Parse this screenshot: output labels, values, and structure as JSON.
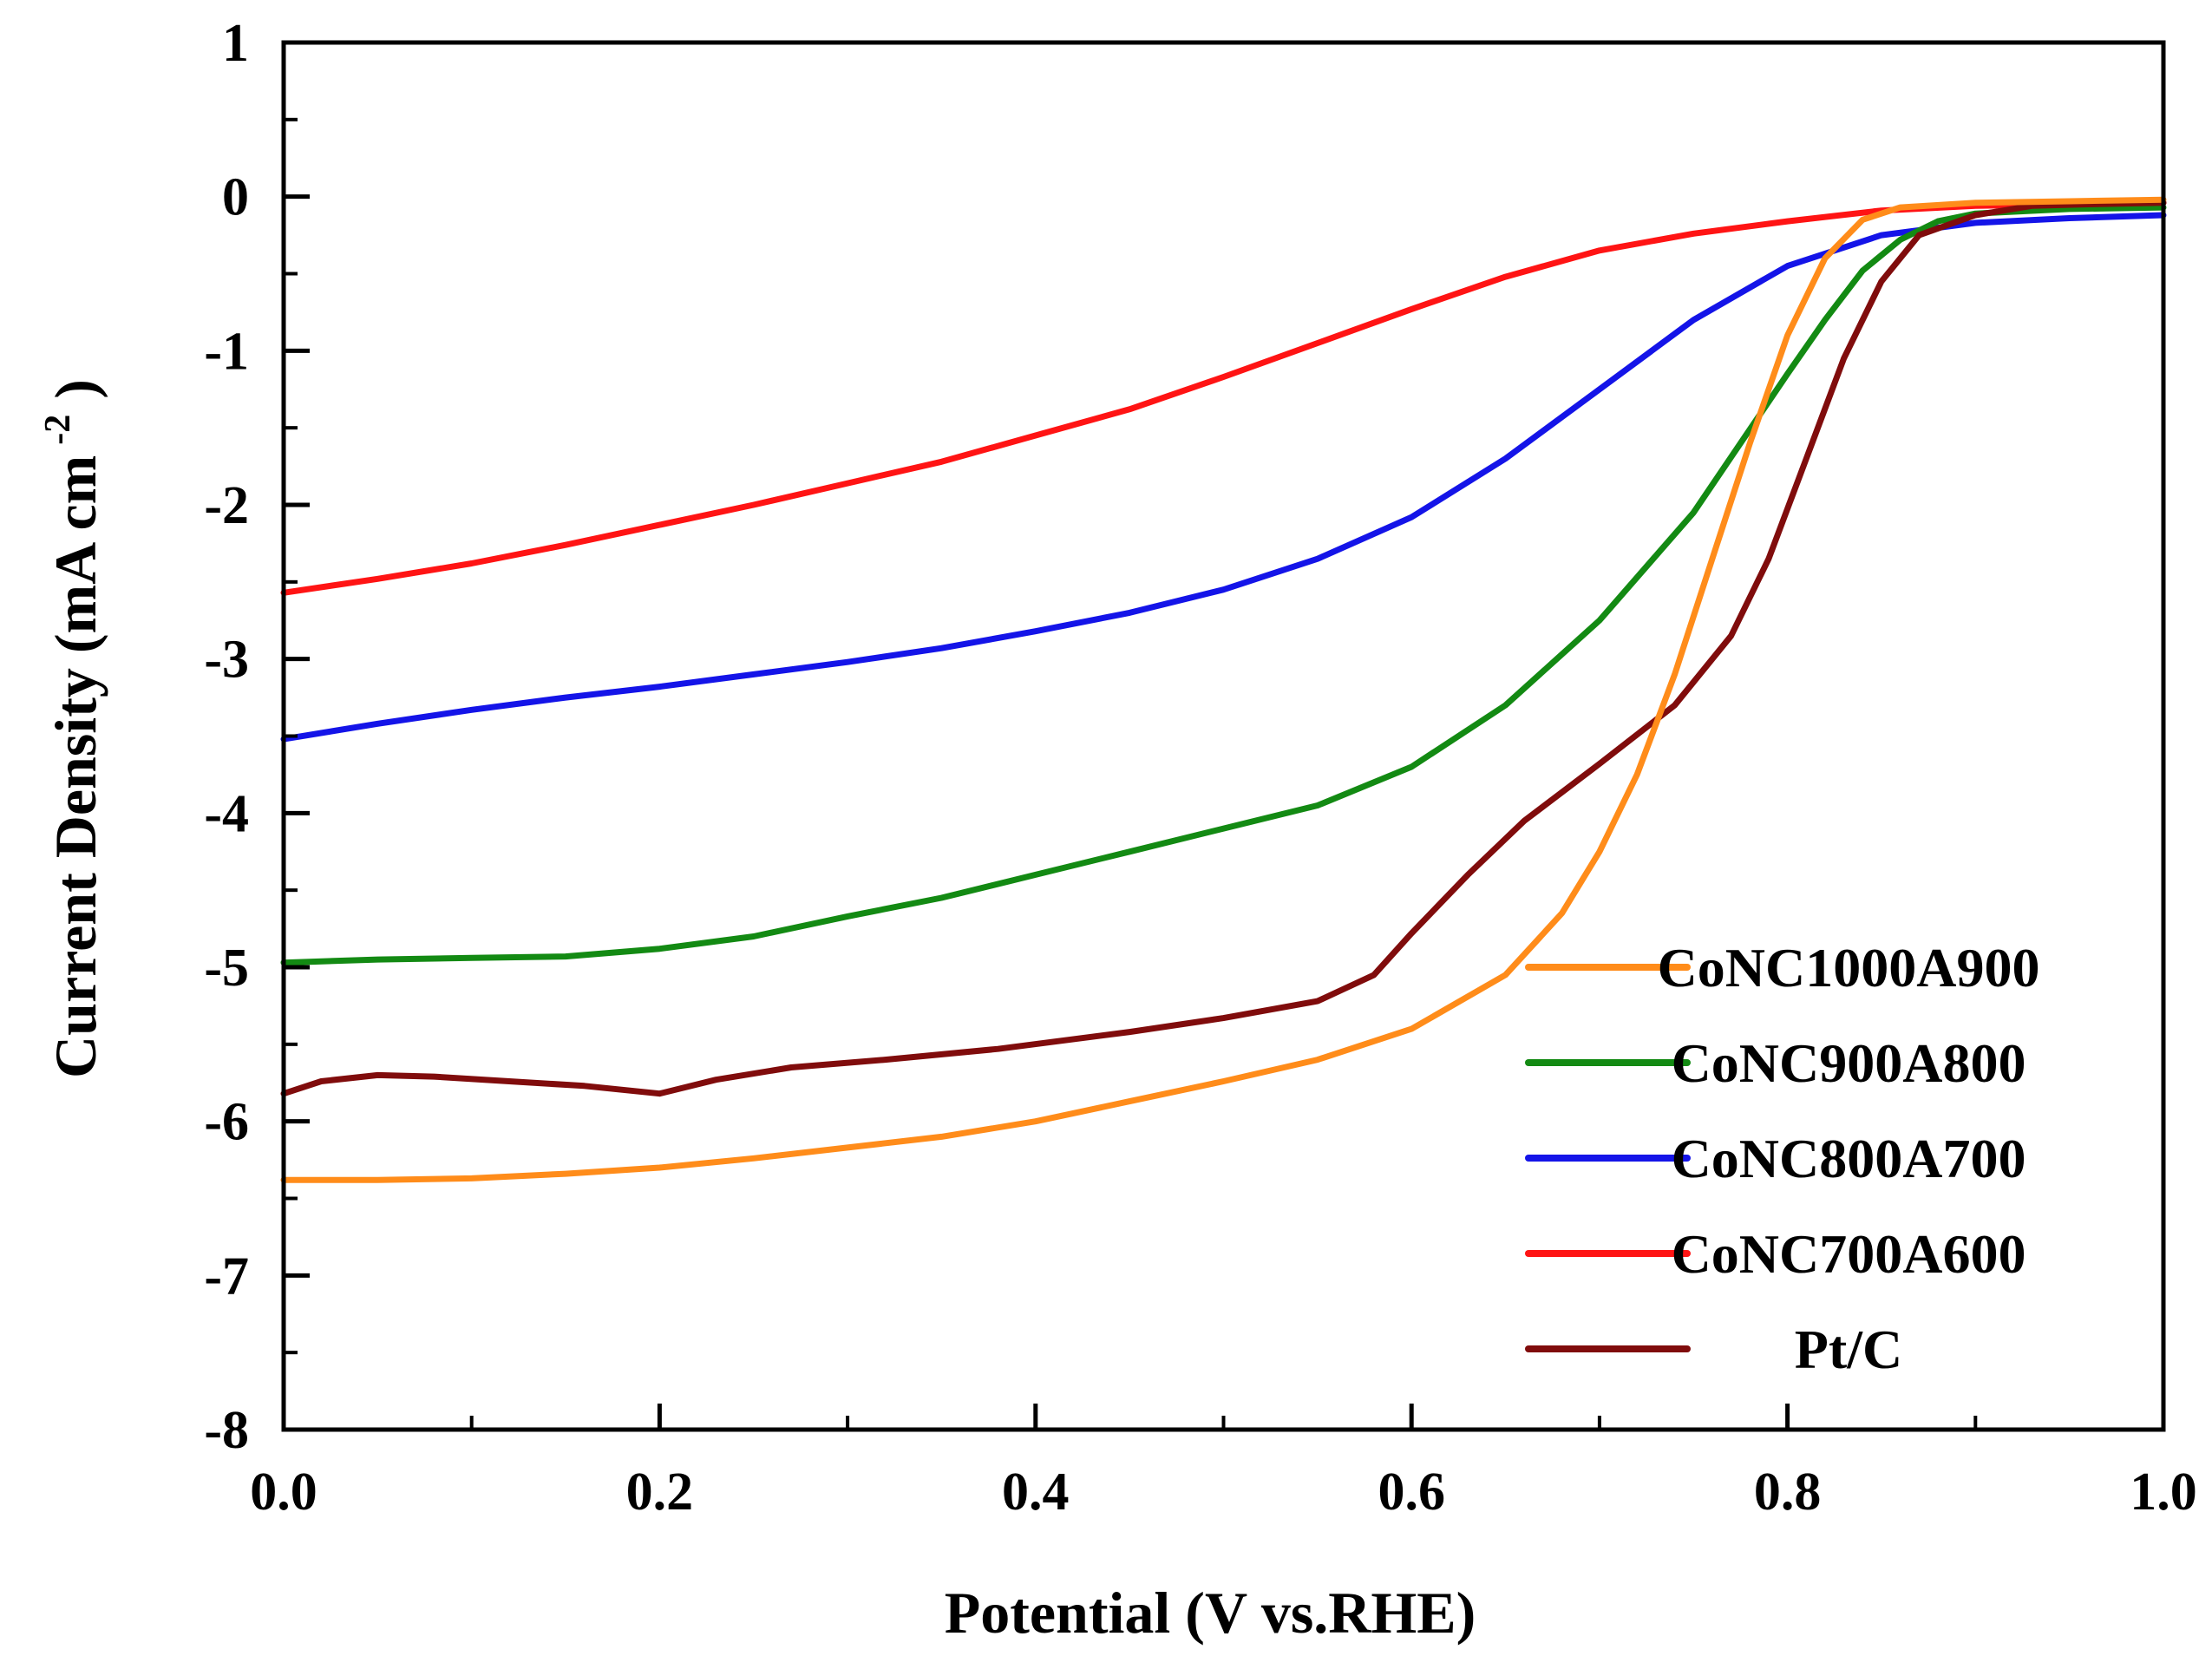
{
  "chart_data": {
    "type": "line",
    "title": "",
    "xlabel": "Potential (V vs.RHE)",
    "ylabel_main": "Current Density (mA cm",
    "ylabel_sup": "-2",
    "ylabel_close": ")",
    "xlim": [
      0.0,
      1.0
    ],
    "ylim": [
      -8,
      1
    ],
    "x_ticks": [
      0.0,
      0.2,
      0.4,
      0.6,
      0.8,
      1.0
    ],
    "x_tick_labels": [
      "0.0",
      "0.2",
      "0.4",
      "0.6",
      "0.8",
      "1.0"
    ],
    "y_ticks": [
      1,
      0,
      -1,
      -2,
      -3,
      -4,
      -5,
      -6,
      -7,
      -8
    ],
    "y_tick_labels": [
      "1",
      "0",
      "-1",
      "-2",
      "-3",
      "-4",
      "-5",
      "-6",
      "-7",
      "-8"
    ],
    "grid": false,
    "legend_position": "bottom-right",
    "series": [
      {
        "name": "CoNC1000A900",
        "color": "#FF8C1A",
        "points": [
          [
            0.0,
            -6.38
          ],
          [
            0.05,
            -6.38
          ],
          [
            0.1,
            -6.37
          ],
          [
            0.15,
            -6.34
          ],
          [
            0.2,
            -6.3
          ],
          [
            0.25,
            -6.24
          ],
          [
            0.3,
            -6.17
          ],
          [
            0.35,
            -6.1
          ],
          [
            0.4,
            -6.0
          ],
          [
            0.45,
            -5.87
          ],
          [
            0.5,
            -5.74
          ],
          [
            0.55,
            -5.6
          ],
          [
            0.6,
            -5.4
          ],
          [
            0.65,
            -5.05
          ],
          [
            0.68,
            -4.65
          ],
          [
            0.7,
            -4.25
          ],
          [
            0.72,
            -3.75
          ],
          [
            0.74,
            -3.1
          ],
          [
            0.76,
            -2.35
          ],
          [
            0.78,
            -1.6
          ],
          [
            0.8,
            -0.9
          ],
          [
            0.82,
            -0.4
          ],
          [
            0.84,
            -0.15
          ],
          [
            0.86,
            -0.07
          ],
          [
            0.9,
            -0.04
          ],
          [
            0.95,
            -0.03
          ],
          [
            1.0,
            -0.02
          ]
        ]
      },
      {
        "name": "CoNC900A800",
        "color": "#138A13",
        "points": [
          [
            0.0,
            -4.97
          ],
          [
            0.05,
            -4.95
          ],
          [
            0.1,
            -4.94
          ],
          [
            0.15,
            -4.93
          ],
          [
            0.2,
            -4.88
          ],
          [
            0.25,
            -4.8
          ],
          [
            0.3,
            -4.67
          ],
          [
            0.35,
            -4.55
          ],
          [
            0.4,
            -4.4
          ],
          [
            0.45,
            -4.25
          ],
          [
            0.5,
            -4.1
          ],
          [
            0.55,
            -3.95
          ],
          [
            0.6,
            -3.7
          ],
          [
            0.65,
            -3.3
          ],
          [
            0.7,
            -2.75
          ],
          [
            0.75,
            -2.05
          ],
          [
            0.8,
            -1.15
          ],
          [
            0.82,
            -0.8
          ],
          [
            0.84,
            -0.48
          ],
          [
            0.86,
            -0.28
          ],
          [
            0.88,
            -0.16
          ],
          [
            0.9,
            -0.11
          ],
          [
            0.95,
            -0.08
          ],
          [
            1.0,
            -0.07
          ]
        ]
      },
      {
        "name": "CoNC800A700",
        "color": "#1414E8",
        "points": [
          [
            0.0,
            -3.52
          ],
          [
            0.05,
            -3.42
          ],
          [
            0.1,
            -3.33
          ],
          [
            0.15,
            -3.25
          ],
          [
            0.2,
            -3.18
          ],
          [
            0.25,
            -3.1
          ],
          [
            0.3,
            -3.02
          ],
          [
            0.35,
            -2.93
          ],
          [
            0.4,
            -2.82
          ],
          [
            0.45,
            -2.7
          ],
          [
            0.5,
            -2.55
          ],
          [
            0.55,
            -2.35
          ],
          [
            0.6,
            -2.08
          ],
          [
            0.65,
            -1.7
          ],
          [
            0.7,
            -1.25
          ],
          [
            0.75,
            -0.8
          ],
          [
            0.8,
            -0.45
          ],
          [
            0.85,
            -0.25
          ],
          [
            0.9,
            -0.17
          ],
          [
            0.95,
            -0.14
          ],
          [
            1.0,
            -0.12
          ]
        ]
      },
      {
        "name": "CoNC700A600",
        "color": "#FF1414",
        "points": [
          [
            0.0,
            -2.57
          ],
          [
            0.05,
            -2.48
          ],
          [
            0.1,
            -2.38
          ],
          [
            0.15,
            -2.26
          ],
          [
            0.2,
            -2.13
          ],
          [
            0.25,
            -2.0
          ],
          [
            0.3,
            -1.86
          ],
          [
            0.35,
            -1.72
          ],
          [
            0.4,
            -1.55
          ],
          [
            0.45,
            -1.38
          ],
          [
            0.5,
            -1.17
          ],
          [
            0.55,
            -0.95
          ],
          [
            0.6,
            -0.73
          ],
          [
            0.65,
            -0.52
          ],
          [
            0.7,
            -0.35
          ],
          [
            0.75,
            -0.24
          ],
          [
            0.8,
            -0.16
          ],
          [
            0.85,
            -0.09
          ],
          [
            0.9,
            -0.06
          ],
          [
            0.95,
            -0.05
          ],
          [
            1.0,
            -0.04
          ]
        ]
      },
      {
        "name": "Pt/C",
        "color": "#800C0C",
        "points": [
          [
            0.0,
            -5.82
          ],
          [
            0.02,
            -5.74
          ],
          [
            0.05,
            -5.7
          ],
          [
            0.08,
            -5.71
          ],
          [
            0.12,
            -5.74
          ],
          [
            0.16,
            -5.77
          ],
          [
            0.2,
            -5.82
          ],
          [
            0.23,
            -5.73
          ],
          [
            0.27,
            -5.65
          ],
          [
            0.32,
            -5.6
          ],
          [
            0.38,
            -5.53
          ],
          [
            0.45,
            -5.42
          ],
          [
            0.5,
            -5.33
          ],
          [
            0.55,
            -5.22
          ],
          [
            0.58,
            -5.05
          ],
          [
            0.6,
            -4.78
          ],
          [
            0.63,
            -4.4
          ],
          [
            0.66,
            -4.05
          ],
          [
            0.7,
            -3.68
          ],
          [
            0.74,
            -3.3
          ],
          [
            0.77,
            -2.85
          ],
          [
            0.79,
            -2.35
          ],
          [
            0.81,
            -1.7
          ],
          [
            0.83,
            -1.05
          ],
          [
            0.85,
            -0.55
          ],
          [
            0.87,
            -0.25
          ],
          [
            0.9,
            -0.12
          ],
          [
            0.93,
            -0.06
          ],
          [
            0.96,
            -0.05
          ],
          [
            1.0,
            -0.04
          ]
        ]
      }
    ]
  }
}
